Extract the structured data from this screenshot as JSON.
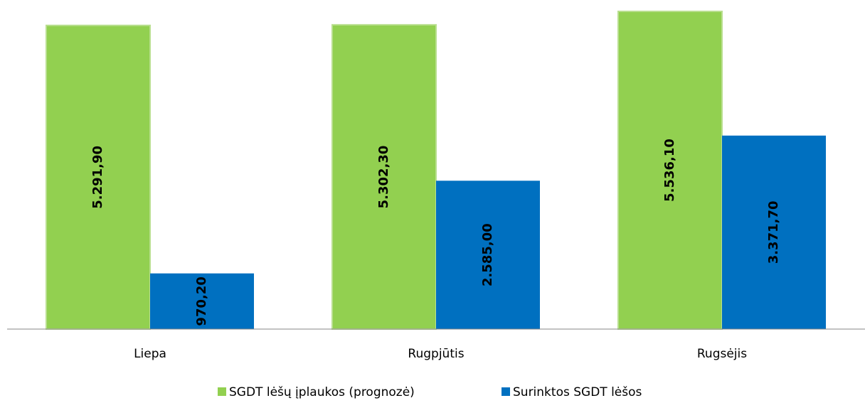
{
  "chart_data": {
    "type": "bar",
    "categories": [
      "Liepa",
      "Rugpjūtis",
      "Rugsėjis"
    ],
    "series": [
      {
        "name": "SGDT lėšų įplaukos (prognozė)",
        "color": "#92d050",
        "values": [
          5291.9,
          5302.3,
          5536.1
        ],
        "value_labels": [
          "5.291,90",
          "5.302,30",
          "5.536,10"
        ]
      },
      {
        "name": "Surinktos SGDT lėšos",
        "color": "#0070c0",
        "values": [
          970.2,
          2585.0,
          3371.7
        ],
        "value_labels": [
          "970,20",
          "2.585,00",
          "3.371,70"
        ]
      }
    ],
    "legend": "bottom"
  }
}
